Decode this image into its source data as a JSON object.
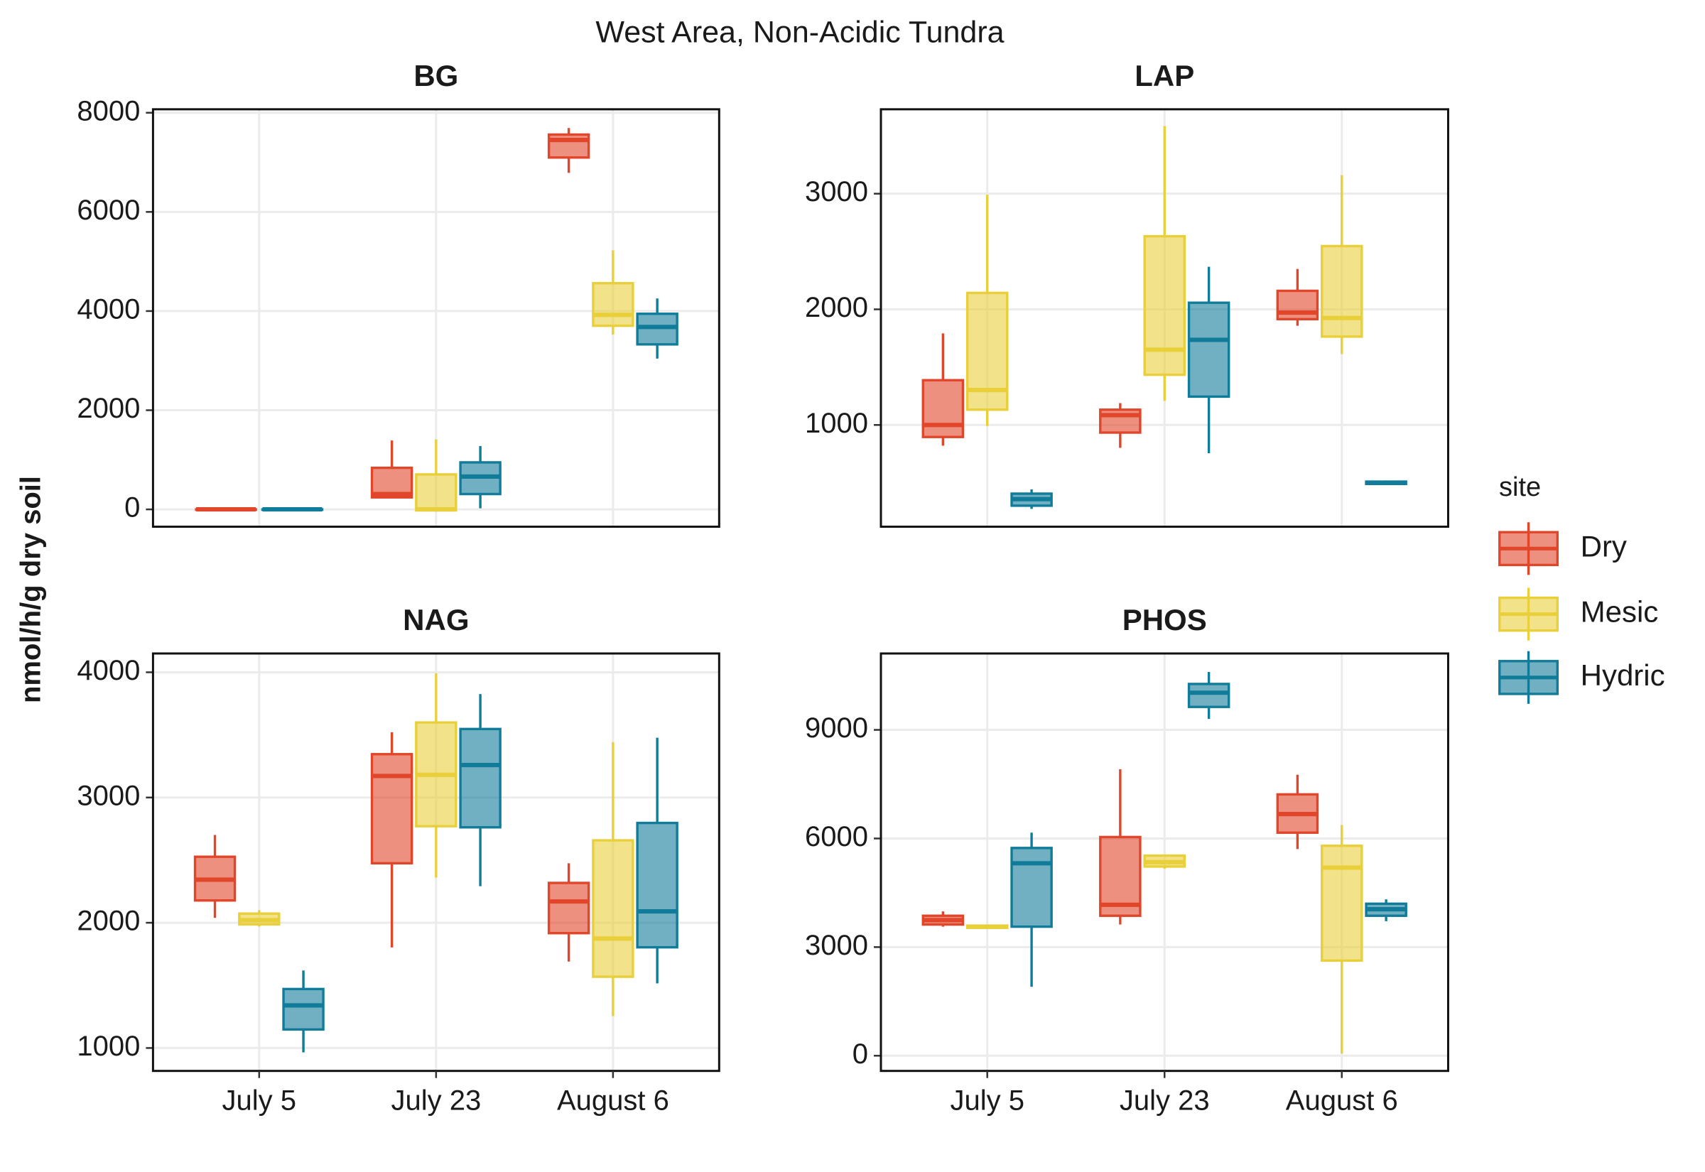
{
  "title": "West Area, Non-Acidic Tundra",
  "y_label": "nmol/h/g dry soil",
  "legend_title": "site",
  "chart_data": [
    {
      "type": "box",
      "title": "BG",
      "categories": [
        "July 5",
        "July 23",
        "August 6"
      ],
      "ylim": [
        -350,
        8070
      ],
      "yticks": [
        0,
        2000,
        4000,
        6000,
        8000
      ],
      "grid": true,
      "series": [
        {
          "name": "Dry",
          "color": "#e1462a",
          "values": [
            {
              "whislo": 0,
              "q1": 0,
              "med": 0,
              "q3": 0,
              "whishi": 0
            },
            {
              "whislo": 242,
              "q1": 242,
              "med": 309,
              "q3": 838,
              "whishi": 1389
            },
            {
              "whislo": 6788,
              "q1": 7097,
              "med": 7450,
              "q3": 7560,
              "whishi": 7692
            }
          ]
        },
        {
          "name": "Mesic",
          "color": "#e9cf3a",
          "values": [
            null,
            {
              "whislo": -30,
              "q1": -20,
              "med": 0,
              "q3": 705,
              "whishi": 1410
            },
            {
              "whislo": 3526,
              "q1": 3703,
              "med": 3923,
              "q3": 4562,
              "whishi": 5224
            }
          ]
        },
        {
          "name": "Hydric",
          "color": "#117c99",
          "values": [
            {
              "whislo": 0,
              "q1": 0,
              "med": 0,
              "q3": 0,
              "whishi": 0
            },
            {
              "whislo": 22,
              "q1": 309,
              "med": 661,
              "q3": 948,
              "whishi": 1278
            },
            {
              "whislo": 3041,
              "q1": 3328,
              "med": 3680,
              "q3": 3945,
              "whishi": 4254
            }
          ]
        }
      ]
    },
    {
      "type": "box",
      "title": "LAP",
      "categories": [
        "July 5",
        "July 23",
        "August 6"
      ],
      "ylim": [
        120,
        3730
      ],
      "yticks": [
        1000,
        2000,
        3000
      ],
      "grid": true,
      "series": [
        {
          "name": "Dry",
          "color": "#e1462a",
          "values": [
            {
              "whislo": 821,
              "q1": 896,
              "med": 1000,
              "q3": 1387,
              "whishi": 1792
            },
            {
              "whislo": 802,
              "q1": 934,
              "med": 1085,
              "q3": 1132,
              "whishi": 1189
            },
            {
              "whislo": 1858,
              "q1": 1915,
              "med": 1972,
              "q3": 2160,
              "whishi": 2349
            }
          ]
        },
        {
          "name": "Mesic",
          "color": "#e9cf3a",
          "values": [
            {
              "whislo": 991,
              "q1": 1132,
              "med": 1302,
              "q3": 2142,
              "whishi": 2991
            },
            {
              "whislo": 1208,
              "q1": 1434,
              "med": 1651,
              "q3": 2632,
              "whishi": 3585
            },
            {
              "whislo": 1613,
              "q1": 1764,
              "med": 1925,
              "q3": 2547,
              "whishi": 3160
            }
          ]
        },
        {
          "name": "Hydric",
          "color": "#117c99",
          "values": [
            {
              "whislo": 274,
              "q1": 302,
              "med": 359,
              "q3": 406,
              "whishi": 443
            },
            {
              "whislo": 755,
              "q1": 1245,
              "med": 1736,
              "q3": 2057,
              "whishi": 2368
            },
            {
              "whislo": 480,
              "q1": 490,
              "med": 500,
              "q3": 510,
              "whishi": 520
            }
          ]
        }
      ]
    },
    {
      "type": "box",
      "title": "NAG",
      "categories": [
        "July 5",
        "July 23",
        "August 6"
      ],
      "ylim": [
        817,
        4150
      ],
      "yticks": [
        1000,
        2000,
        3000,
        4000
      ],
      "grid": true,
      "series": [
        {
          "name": "Dry",
          "color": "#e1462a",
          "values": [
            {
              "whislo": 2039,
              "q1": 2178,
              "med": 2344,
              "q3": 2527,
              "whishi": 2701
            },
            {
              "whislo": 1803,
              "q1": 2475,
              "med": 3172,
              "q3": 3346,
              "whishi": 3521
            },
            {
              "whislo": 1690,
              "q1": 1917,
              "med": 2170,
              "q3": 2318,
              "whishi": 2475
            }
          ]
        },
        {
          "name": "Mesic",
          "color": "#e9cf3a",
          "values": [
            {
              "whislo": 1970,
              "q1": 1987,
              "med": 2021,
              "q3": 2073,
              "whishi": 2100
            },
            {
              "whislo": 2361,
              "q1": 2771,
              "med": 3181,
              "q3": 3599,
              "whishi": 3992
            },
            {
              "whislo": 1255,
              "q1": 1569,
              "med": 1874,
              "q3": 2658,
              "whishi": 3442
            }
          ]
        },
        {
          "name": "Hydric",
          "color": "#117c99",
          "values": [
            {
              "whislo": 965,
              "q1": 1148,
              "med": 1340,
              "q3": 1471,
              "whishi": 1619
            },
            {
              "whislo": 2292,
              "q1": 2762,
              "med": 3259,
              "q3": 3547,
              "whishi": 3826
            },
            {
              "whislo": 1516,
              "q1": 1804,
              "med": 2091,
              "q3": 2797,
              "whishi": 3477
            }
          ]
        }
      ]
    },
    {
      "type": "box",
      "title": "PHOS",
      "categories": [
        "July 5",
        "July 23",
        "August 6"
      ],
      "ylim": [
        -420,
        11110
      ],
      "yticks": [
        0,
        3000,
        6000,
        9000
      ],
      "grid": true,
      "series": [
        {
          "name": "Dry",
          "color": "#e1462a",
          "values": [
            {
              "whislo": 3564,
              "q1": 3624,
              "med": 3745,
              "q3": 3866,
              "whishi": 3986
            },
            {
              "whislo": 3624,
              "q1": 3866,
              "med": 4168,
              "q3": 6040,
              "whishi": 7912
            },
            {
              "whislo": 5708,
              "q1": 6161,
              "med": 6674,
              "q3": 7218,
              "whishi": 7761
            }
          ]
        },
        {
          "name": "Mesic",
          "color": "#e9cf3a",
          "values": [
            {
              "whislo": 3520,
              "q1": 3534,
              "med": 3560,
              "q3": 3594,
              "whishi": 3600
            },
            {
              "whislo": 5164,
              "q1": 5225,
              "med": 5346,
              "q3": 5527,
              "whishi": 5557
            },
            {
              "whislo": 60,
              "q1": 2627,
              "med": 5195,
              "q3": 5799,
              "whishi": 6372
            }
          ]
        },
        {
          "name": "Hydric",
          "color": "#117c99",
          "values": [
            {
              "whislo": 1903,
              "q1": 3564,
              "med": 5315,
              "q3": 5738,
              "whishi": 6161
            },
            {
              "whislo": 9302,
              "q1": 9634,
              "med": 10026,
              "q3": 10268,
              "whishi": 10600
            },
            {
              "whislo": 3715,
              "q1": 3866,
              "med": 4047,
              "q3": 4198,
              "whishi": 4319
            }
          ]
        }
      ]
    }
  ]
}
